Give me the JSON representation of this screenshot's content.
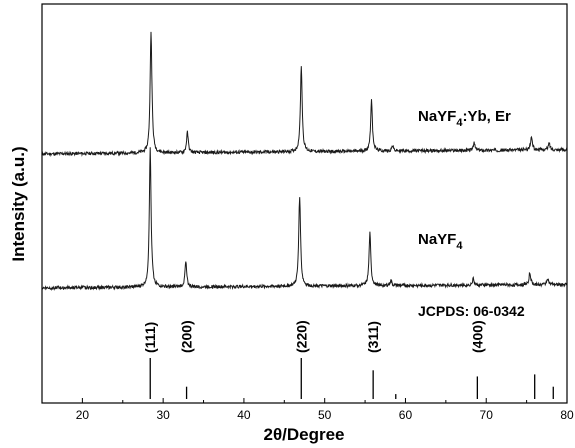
{
  "chart_data": {
    "type": "line",
    "xlabel_pre": "2",
    "xlabel_theta": "θ",
    "xlabel_post": "/Degree",
    "ylabel": "Intensity (a.u.)",
    "xlim": [
      15,
      80
    ],
    "x_ticks": [
      20,
      30,
      40,
      50,
      60,
      70,
      80
    ],
    "grid": false,
    "legend": "none",
    "series": [
      {
        "label_main": "NaYF",
        "label_sub": "4",
        "label_rest": ":Yb, Er",
        "baseline": 0.42,
        "slope": 0.015,
        "peaks": [
          [
            28.5,
            8.4
          ],
          [
            33.0,
            1.4
          ],
          [
            47.1,
            5.9
          ],
          [
            55.8,
            3.5
          ],
          [
            58.4,
            0.35
          ],
          [
            68.5,
            0.5
          ],
          [
            75.6,
            0.9
          ],
          [
            77.8,
            0.45
          ]
        ]
      },
      {
        "label_main": "NaYF",
        "label_sub": "4",
        "label_rest": "",
        "baseline": 0.35,
        "slope": 0.012,
        "peaks": [
          [
            28.4,
            9.5
          ],
          [
            32.8,
            1.7
          ],
          [
            46.9,
            6.2
          ],
          [
            55.6,
            3.6
          ],
          [
            58.2,
            0.35
          ],
          [
            68.4,
            0.45
          ],
          [
            75.4,
            0.8
          ],
          [
            77.6,
            0.45
          ]
        ]
      }
    ],
    "reference": {
      "label": "JCPDS: 06-0342",
      "lines": [
        [
          28.4,
          1.0
        ],
        [
          32.9,
          0.3
        ],
        [
          47.1,
          1.0
        ],
        [
          56.0,
          0.7
        ],
        [
          58.8,
          0.12
        ],
        [
          68.9,
          0.55
        ],
        [
          76.0,
          0.6
        ],
        [
          78.3,
          0.3
        ]
      ],
      "hkl": [
        {
          "x": 28.4,
          "label": "(111)"
        },
        {
          "x": 32.9,
          "label": "(200)"
        },
        {
          "x": 47.1,
          "label": "(220)"
        },
        {
          "x": 56.0,
          "label": "(311)"
        },
        {
          "x": 68.9,
          "label": "(400)"
        }
      ]
    }
  }
}
